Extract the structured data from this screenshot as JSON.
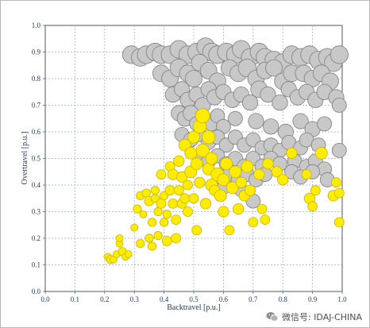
{
  "chart_data": {
    "type": "scatter",
    "title": "",
    "xlabel": "Backtravel [p.u.]",
    "ylabel": "Overtravel [p.u.]",
    "xlim": [
      0,
      1
    ],
    "ylim": [
      0,
      1
    ],
    "xticks": [
      "0.0",
      "0.1",
      "0.2",
      "0.3",
      "0.4",
      "0.5",
      "0.6",
      "0.7",
      "0.8",
      "0.9",
      "1.0"
    ],
    "yticks": [
      "0.0",
      "0.1",
      "0.2",
      "0.3",
      "0.4",
      "0.5",
      "0.6",
      "0.7",
      "0.8",
      "0.9",
      "1.0"
    ],
    "grid": true,
    "colors": {
      "gray": "#c8c8c8",
      "gray_edge": "#7e7e7e",
      "yellow": "#ffec00",
      "yellow_edge": "#c9b400",
      "grid": "#9aa6cc",
      "axis": "#666666"
    },
    "series": [
      {
        "color": "gray",
        "points": [
          [
            0.29,
            0.89,
            0.03
          ],
          [
            0.32,
            0.88,
            0.03
          ],
          [
            0.34,
            0.89,
            0.03
          ],
          [
            0.37,
            0.9,
            0.03
          ],
          [
            0.39,
            0.89,
            0.03
          ],
          [
            0.42,
            0.89,
            0.03
          ],
          [
            0.45,
            0.91,
            0.03
          ],
          [
            0.48,
            0.89,
            0.03
          ],
          [
            0.51,
            0.9,
            0.03
          ],
          [
            0.54,
            0.92,
            0.03
          ],
          [
            0.56,
            0.9,
            0.03
          ],
          [
            0.58,
            0.89,
            0.03
          ],
          [
            0.61,
            0.9,
            0.03
          ],
          [
            0.64,
            0.89,
            0.03
          ],
          [
            0.66,
            0.91,
            0.03
          ],
          [
            0.69,
            0.88,
            0.03
          ],
          [
            0.72,
            0.9,
            0.03
          ],
          [
            0.74,
            0.88,
            0.03
          ],
          [
            0.77,
            0.87,
            0.03
          ],
          [
            0.8,
            0.86,
            0.03
          ],
          [
            0.83,
            0.89,
            0.03
          ],
          [
            0.86,
            0.88,
            0.03
          ],
          [
            0.89,
            0.89,
            0.03
          ],
          [
            0.92,
            0.87,
            0.03
          ],
          [
            0.95,
            0.88,
            0.03
          ],
          [
            0.97,
            0.86,
            0.03
          ],
          [
            0.99,
            0.89,
            0.03
          ],
          [
            0.39,
            0.82,
            0.028
          ],
          [
            0.42,
            0.8,
            0.028
          ],
          [
            0.45,
            0.84,
            0.03
          ],
          [
            0.48,
            0.82,
            0.028
          ],
          [
            0.5,
            0.8,
            0.028
          ],
          [
            0.52,
            0.86,
            0.028
          ],
          [
            0.55,
            0.83,
            0.028
          ],
          [
            0.58,
            0.79,
            0.028
          ],
          [
            0.62,
            0.84,
            0.028
          ],
          [
            0.65,
            0.82,
            0.028
          ],
          [
            0.68,
            0.84,
            0.03
          ],
          [
            0.71,
            0.8,
            0.028
          ],
          [
            0.74,
            0.83,
            0.028
          ],
          [
            0.77,
            0.84,
            0.028
          ],
          [
            0.8,
            0.79,
            0.028
          ],
          [
            0.83,
            0.82,
            0.028
          ],
          [
            0.87,
            0.82,
            0.028
          ],
          [
            0.9,
            0.8,
            0.028
          ],
          [
            0.93,
            0.82,
            0.028
          ],
          [
            0.96,
            0.79,
            0.028
          ],
          [
            0.43,
            0.74,
            0.026
          ],
          [
            0.46,
            0.76,
            0.026
          ],
          [
            0.48,
            0.72,
            0.026
          ],
          [
            0.51,
            0.74,
            0.026
          ],
          [
            0.53,
            0.7,
            0.026
          ],
          [
            0.55,
            0.76,
            0.026
          ],
          [
            0.57,
            0.73,
            0.026
          ],
          [
            0.6,
            0.75,
            0.026
          ],
          [
            0.63,
            0.72,
            0.026
          ],
          [
            0.66,
            0.74,
            0.026
          ],
          [
            0.69,
            0.71,
            0.026
          ],
          [
            0.72,
            0.76,
            0.028
          ],
          [
            0.75,
            0.74,
            0.026
          ],
          [
            0.79,
            0.71,
            0.026
          ],
          [
            0.82,
            0.76,
            0.026
          ],
          [
            0.85,
            0.73,
            0.026
          ],
          [
            0.88,
            0.75,
            0.026
          ],
          [
            0.91,
            0.72,
            0.026
          ],
          [
            0.94,
            0.75,
            0.026
          ],
          [
            0.98,
            0.73,
            0.026
          ],
          [
            0.99,
            0.7,
            0.024
          ],
          [
            0.45,
            0.67,
            0.026
          ],
          [
            0.47,
            0.65,
            0.026
          ],
          [
            0.49,
            0.67,
            0.026
          ],
          [
            0.51,
            0.63,
            0.024
          ],
          [
            0.53,
            0.66,
            0.024
          ],
          [
            0.56,
            0.63,
            0.024
          ],
          [
            0.58,
            0.66,
            0.024
          ],
          [
            0.6,
            0.62,
            0.024
          ],
          [
            0.64,
            0.65,
            0.024
          ],
          [
            0.71,
            0.64,
            0.026
          ],
          [
            0.76,
            0.62,
            0.026
          ],
          [
            0.81,
            0.6,
            0.026
          ],
          [
            0.86,
            0.64,
            0.026
          ],
          [
            0.9,
            0.61,
            0.026
          ],
          [
            0.94,
            0.63,
            0.024
          ],
          [
            0.46,
            0.59,
            0.024
          ],
          [
            0.49,
            0.57,
            0.024
          ],
          [
            0.52,
            0.59,
            0.024
          ],
          [
            0.55,
            0.56,
            0.024
          ],
          [
            0.58,
            0.58,
            0.024
          ],
          [
            0.61,
            0.55,
            0.024
          ],
          [
            0.64,
            0.58,
            0.024
          ],
          [
            0.67,
            0.55,
            0.024
          ],
          [
            0.7,
            0.57,
            0.024
          ],
          [
            0.73,
            0.54,
            0.024
          ],
          [
            0.76,
            0.55,
            0.024
          ],
          [
            0.79,
            0.53,
            0.024
          ],
          [
            0.82,
            0.56,
            0.024
          ],
          [
            0.86,
            0.54,
            0.024
          ],
          [
            0.88,
            0.57,
            0.024
          ],
          [
            0.92,
            0.55,
            0.024
          ],
          [
            0.99,
            0.53,
            0.024
          ],
          [
            0.52,
            0.51,
            0.024
          ],
          [
            0.55,
            0.49,
            0.024
          ],
          [
            0.58,
            0.51,
            0.024
          ],
          [
            0.61,
            0.48,
            0.024
          ],
          [
            0.64,
            0.5,
            0.024
          ],
          [
            0.67,
            0.47,
            0.024
          ],
          [
            0.7,
            0.5,
            0.024
          ],
          [
            0.73,
            0.47,
            0.024
          ],
          [
            0.76,
            0.5,
            0.024
          ],
          [
            0.79,
            0.48,
            0.024
          ],
          [
            0.84,
            0.49,
            0.024
          ],
          [
            0.88,
            0.47,
            0.024
          ],
          [
            0.91,
            0.49,
            0.024
          ],
          [
            0.94,
            0.46,
            0.024
          ],
          [
            0.59,
            0.43,
            0.024
          ],
          [
            0.62,
            0.44,
            0.024
          ],
          [
            0.65,
            0.42,
            0.024
          ],
          [
            0.68,
            0.44,
            0.024
          ],
          [
            0.71,
            0.42,
            0.024
          ],
          [
            0.74,
            0.44,
            0.024
          ],
          [
            0.83,
            0.45,
            0.024
          ],
          [
            0.86,
            0.43,
            0.024
          ],
          [
            0.9,
            0.45,
            0.024
          ],
          [
            0.95,
            0.42,
            0.024
          ],
          [
            0.6,
            0.39,
            0.022
          ],
          [
            0.66,
            0.38,
            0.022
          ],
          [
            0.7,
            0.34,
            0.024
          ]
        ]
      },
      {
        "color": "yellow",
        "points": [
          [
            0.21,
            0.13,
            0.012
          ],
          [
            0.22,
            0.12,
            0.014
          ],
          [
            0.23,
            0.12,
            0.012
          ],
          [
            0.24,
            0.14,
            0.012
          ],
          [
            0.25,
            0.18,
            0.012
          ],
          [
            0.25,
            0.2,
            0.012
          ],
          [
            0.26,
            0.15,
            0.014
          ],
          [
            0.27,
            0.13,
            0.012
          ],
          [
            0.28,
            0.14,
            0.012
          ],
          [
            0.3,
            0.24,
            0.012
          ],
          [
            0.31,
            0.31,
            0.014
          ],
          [
            0.32,
            0.36,
            0.014
          ],
          [
            0.32,
            0.18,
            0.014
          ],
          [
            0.33,
            0.29,
            0.012
          ],
          [
            0.34,
            0.37,
            0.014
          ],
          [
            0.35,
            0.34,
            0.016
          ],
          [
            0.35,
            0.2,
            0.014
          ],
          [
            0.36,
            0.26,
            0.014
          ],
          [
            0.36,
            0.17,
            0.014
          ],
          [
            0.37,
            0.35,
            0.014
          ],
          [
            0.37,
            0.38,
            0.014
          ],
          [
            0.38,
            0.3,
            0.014
          ],
          [
            0.38,
            0.21,
            0.014
          ],
          [
            0.39,
            0.44,
            0.016
          ],
          [
            0.39,
            0.33,
            0.016
          ],
          [
            0.4,
            0.36,
            0.014
          ],
          [
            0.4,
            0.26,
            0.014
          ],
          [
            0.41,
            0.29,
            0.014
          ],
          [
            0.41,
            0.19,
            0.016
          ],
          [
            0.42,
            0.47,
            0.016
          ],
          [
            0.42,
            0.38,
            0.016
          ],
          [
            0.43,
            0.44,
            0.018
          ],
          [
            0.43,
            0.33,
            0.016
          ],
          [
            0.44,
            0.2,
            0.016
          ],
          [
            0.44,
            0.27,
            0.016
          ],
          [
            0.45,
            0.49,
            0.018
          ],
          [
            0.45,
            0.38,
            0.016
          ],
          [
            0.46,
            0.33,
            0.016
          ],
          [
            0.46,
            0.43,
            0.018
          ],
          [
            0.47,
            0.55,
            0.02
          ],
          [
            0.47,
            0.35,
            0.016
          ],
          [
            0.48,
            0.3,
            0.016
          ],
          [
            0.48,
            0.4,
            0.016
          ],
          [
            0.49,
            0.52,
            0.02
          ],
          [
            0.49,
            0.45,
            0.02
          ],
          [
            0.5,
            0.58,
            0.02
          ],
          [
            0.5,
            0.35,
            0.016
          ],
          [
            0.51,
            0.23,
            0.016
          ],
          [
            0.51,
            0.48,
            0.02
          ],
          [
            0.52,
            0.62,
            0.022
          ],
          [
            0.52,
            0.41,
            0.018
          ],
          [
            0.53,
            0.66,
            0.024
          ],
          [
            0.53,
            0.53,
            0.022
          ],
          [
            0.54,
            0.33,
            0.018
          ],
          [
            0.55,
            0.58,
            0.022
          ],
          [
            0.55,
            0.46,
            0.02
          ],
          [
            0.56,
            0.4,
            0.02
          ],
          [
            0.56,
            0.5,
            0.02
          ],
          [
            0.57,
            0.38,
            0.018
          ],
          [
            0.58,
            0.44,
            0.022
          ],
          [
            0.59,
            0.36,
            0.02
          ],
          [
            0.6,
            0.42,
            0.02
          ],
          [
            0.6,
            0.3,
            0.018
          ],
          [
            0.61,
            0.48,
            0.02
          ],
          [
            0.62,
            0.23,
            0.016
          ],
          [
            0.63,
            0.39,
            0.02
          ],
          [
            0.64,
            0.45,
            0.02
          ],
          [
            0.65,
            0.31,
            0.018
          ],
          [
            0.66,
            0.41,
            0.018
          ],
          [
            0.67,
            0.36,
            0.018
          ],
          [
            0.68,
            0.47,
            0.02
          ],
          [
            0.69,
            0.38,
            0.018
          ],
          [
            0.7,
            0.26,
            0.016
          ],
          [
            0.72,
            0.44,
            0.018
          ],
          [
            0.73,
            0.31,
            0.016
          ],
          [
            0.74,
            0.27,
            0.016
          ],
          [
            0.75,
            0.48,
            0.018
          ],
          [
            0.78,
            0.45,
            0.018
          ],
          [
            0.8,
            0.42,
            0.018
          ],
          [
            0.83,
            0.52,
            0.018
          ],
          [
            0.88,
            0.44,
            0.016
          ],
          [
            0.89,
            0.35,
            0.018
          ],
          [
            0.9,
            0.32,
            0.016
          ],
          [
            0.91,
            0.38,
            0.016
          ],
          [
            0.97,
            0.36,
            0.018
          ],
          [
            0.98,
            0.41,
            0.016
          ],
          [
            0.99,
            0.37,
            0.016
          ],
          [
            0.99,
            0.26,
            0.016
          ],
          [
            0.93,
            0.52,
            0.02
          ]
        ]
      }
    ]
  },
  "watermark": {
    "text": "微信号: IDAJ-CHINA",
    "icon": "wechat-icon"
  }
}
